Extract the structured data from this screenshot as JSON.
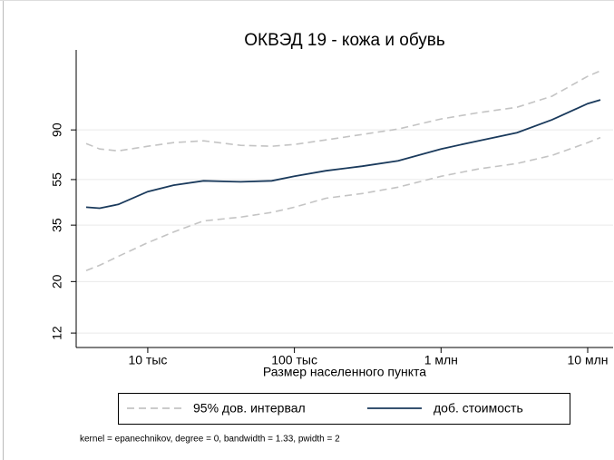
{
  "chart_data": {
    "type": "line",
    "title": "ОКВЭД 19 - кожа и обувь",
    "x_label": "Размер населенного пункта",
    "note": "kernel = epanechnikov, degree = 0, bandwidth = 1.33, pwidth = 2",
    "log_x": true,
    "log_y": true,
    "grid": true,
    "xlim": [
      3250,
      14900000
    ],
    "ylim": [
      10.4,
      199
    ],
    "xticks": [
      {
        "value": 10000,
        "label": "10 тыс"
      },
      {
        "value": 100000,
        "label": "100 тыс"
      },
      {
        "value": 1000000,
        "label": "1 млн"
      },
      {
        "value": 10000000,
        "label": "10 млн"
      }
    ],
    "yticks": [
      12,
      20,
      35,
      55,
      90
    ],
    "x": [
      3800,
      4700,
      6300,
      10000,
      15000,
      24000,
      43000,
      70000,
      100000,
      164000,
      290000,
      510000,
      1000000,
      1800000,
      3300000,
      5700000,
      10000000,
      12200000
    ],
    "series": [
      {
        "name": "95% дов. интервал",
        "color": "#c4c4c4",
        "dashed": true,
        "values": [
          22.3,
          23.5,
          25.7,
          29.4,
          32.7,
          36.5,
          37.9,
          39.7,
          41.8,
          45.7,
          47.9,
          51.0,
          56.8,
          61.1,
          64.5,
          69.9,
          79.3,
          83.4
        ],
        "upper": [
          78.6,
          74.5,
          73.1,
          76.5,
          79.3,
          80.8,
          77.2,
          76.5,
          77.9,
          81.5,
          86.0,
          90.8,
          100.3,
          106.8,
          112.7,
          125.6,
          153.2,
          161.7
        ]
      },
      {
        "name": "доб. стоимость",
        "color": "#1a3a5c",
        "dashed": false,
        "values": [
          41.8,
          41.4,
          43.0,
          48.8,
          52.0,
          54.3,
          53.8,
          54.3,
          56.8,
          60.0,
          62.8,
          66.2,
          74.5,
          80.8,
          87.6,
          99.4,
          116.8,
          121.2
        ]
      }
    ]
  }
}
